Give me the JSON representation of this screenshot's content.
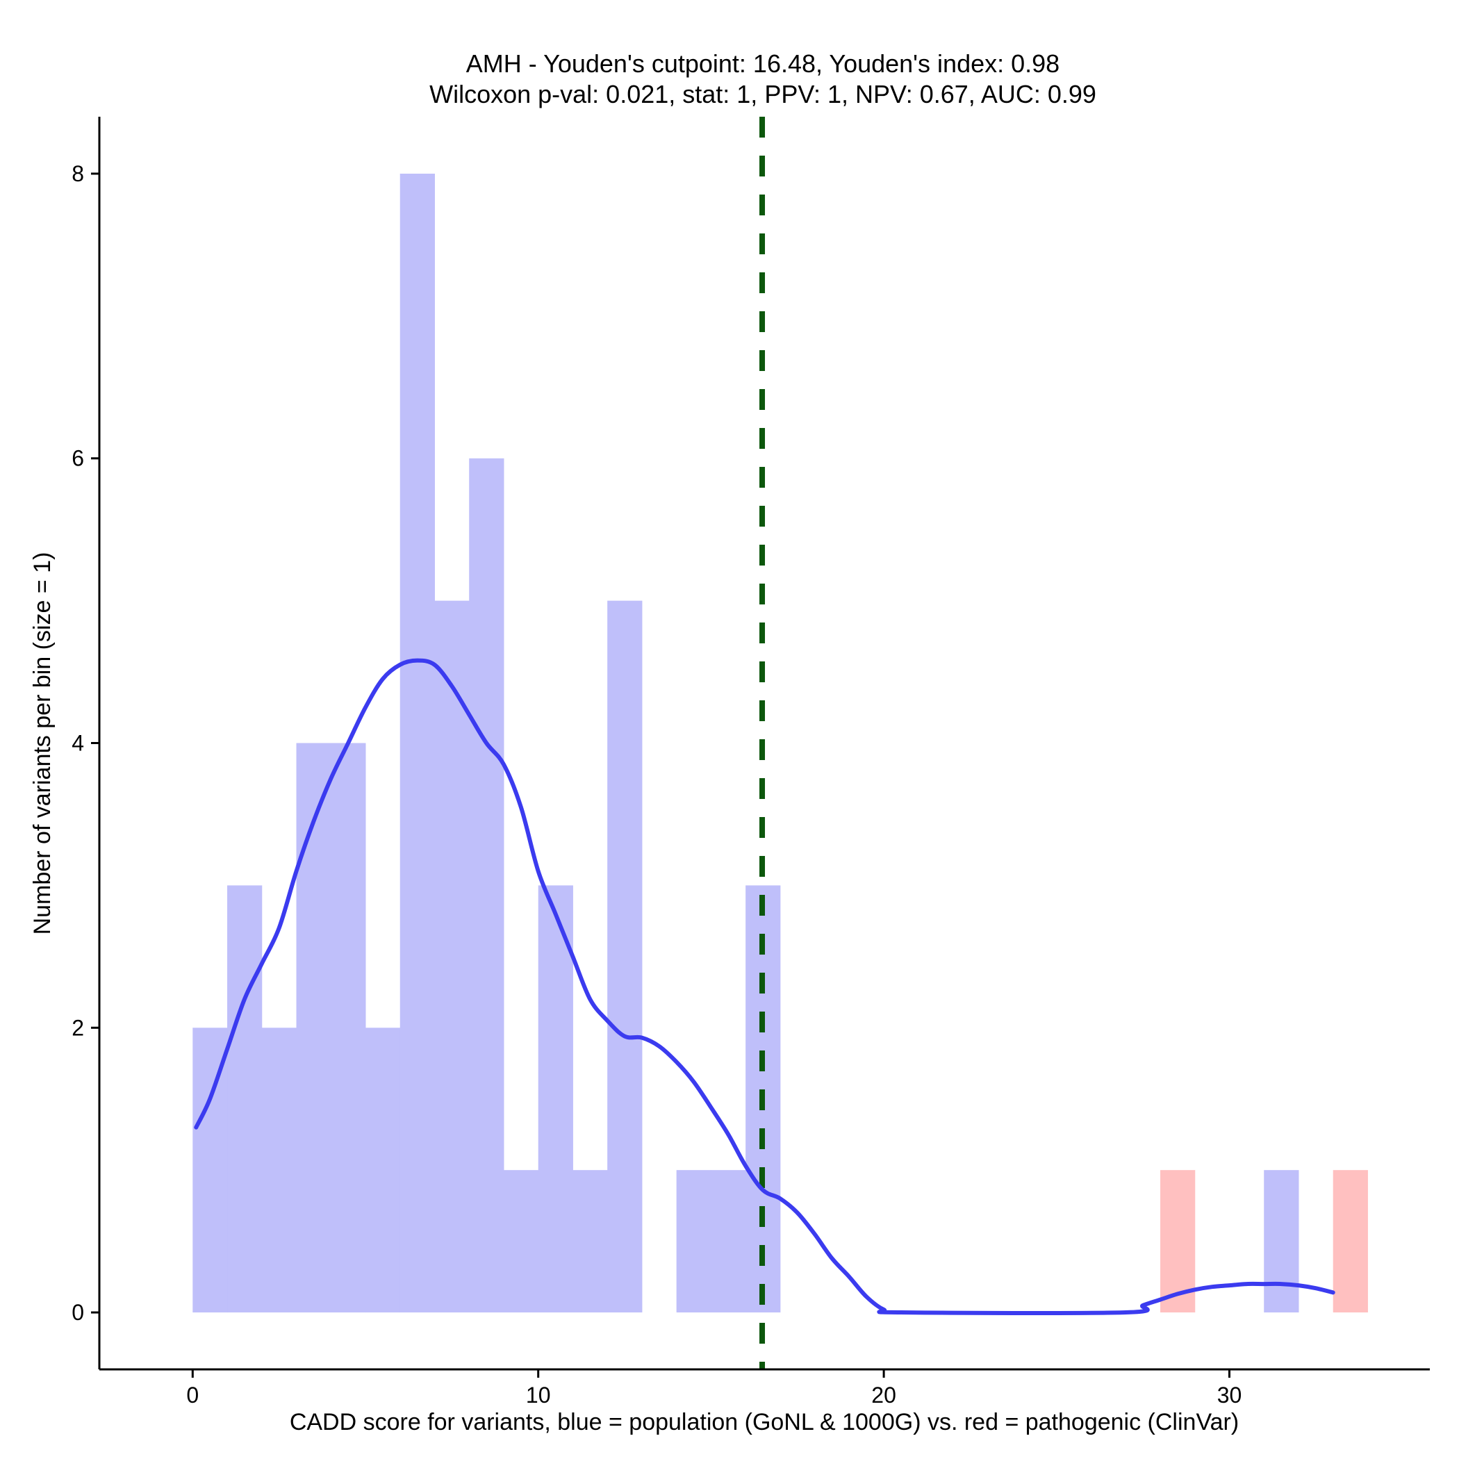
{
  "chart_data": {
    "type": "bar",
    "title": "AMH - Youden's cutpoint: 16.48, Youden's index: 0.98",
    "subtitle": "Wilcoxon p-val: 0.021, stat: 1, PPV: 1, NPV: 0.67, AUC: 0.99",
    "xlabel": "CADD score for variants, blue = population (GoNL & 1000G) vs. red = pathogenic (ClinVar)",
    "ylabel": "Number of variants per bin (size = 1)",
    "xlim": [
      -2.7,
      35.8
    ],
    "ylim": [
      -0.4,
      8.4
    ],
    "xticks": [
      0,
      10,
      20,
      30
    ],
    "yticks": [
      0,
      2,
      4,
      6,
      8
    ],
    "grid": false,
    "legend": "none",
    "bin_width": 1,
    "cutpoint": 16.48,
    "series": [
      {
        "name": "population",
        "color": "#bfbffa",
        "bins": [
          {
            "x0": 0,
            "count": 2
          },
          {
            "x0": 1,
            "count": 3
          },
          {
            "x0": 2,
            "count": 2
          },
          {
            "x0": 3,
            "count": 4
          },
          {
            "x0": 4,
            "count": 4
          },
          {
            "x0": 5,
            "count": 2
          },
          {
            "x0": 6,
            "count": 8
          },
          {
            "x0": 7,
            "count": 5
          },
          {
            "x0": 8,
            "count": 6
          },
          {
            "x0": 9,
            "count": 1
          },
          {
            "x0": 10,
            "count": 3
          },
          {
            "x0": 11,
            "count": 1
          },
          {
            "x0": 12,
            "count": 5
          },
          {
            "x0": 14,
            "count": 1
          },
          {
            "x0": 15,
            "count": 1
          },
          {
            "x0": 16,
            "count": 3
          },
          {
            "x0": 31,
            "count": 1
          }
        ]
      },
      {
        "name": "pathogenic",
        "color": "#ffc0c0",
        "bins": [
          {
            "x0": 28,
            "count": 1
          },
          {
            "x0": 33,
            "count": 1
          }
        ]
      }
    ],
    "density_curve": {
      "color": "#3b3bef",
      "points": [
        [
          0.1,
          1.3
        ],
        [
          0.5,
          1.5
        ],
        [
          1.0,
          1.85
        ],
        [
          1.5,
          2.2
        ],
        [
          2.0,
          2.45
        ],
        [
          2.5,
          2.7
        ],
        [
          3.0,
          3.1
        ],
        [
          3.5,
          3.45
        ],
        [
          4.0,
          3.75
        ],
        [
          4.5,
          4.0
        ],
        [
          5.0,
          4.25
        ],
        [
          5.5,
          4.45
        ],
        [
          6.0,
          4.55
        ],
        [
          6.5,
          4.58
        ],
        [
          7.0,
          4.55
        ],
        [
          7.5,
          4.4
        ],
        [
          8.0,
          4.2
        ],
        [
          8.5,
          4.0
        ],
        [
          9.0,
          3.85
        ],
        [
          9.5,
          3.55
        ],
        [
          10.0,
          3.1
        ],
        [
          10.5,
          2.8
        ],
        [
          11.0,
          2.5
        ],
        [
          11.5,
          2.2
        ],
        [
          12.0,
          2.05
        ],
        [
          12.5,
          1.94
        ],
        [
          13.0,
          1.93
        ],
        [
          13.5,
          1.87
        ],
        [
          14.0,
          1.76
        ],
        [
          14.5,
          1.62
        ],
        [
          15.0,
          1.44
        ],
        [
          15.5,
          1.25
        ],
        [
          16.0,
          1.03
        ],
        [
          16.5,
          0.86
        ],
        [
          17.0,
          0.8
        ],
        [
          17.5,
          0.7
        ],
        [
          18.0,
          0.55
        ],
        [
          18.5,
          0.38
        ],
        [
          19.0,
          0.25
        ],
        [
          19.5,
          0.11
        ],
        [
          20.0,
          0.02
        ],
        [
          20.5,
          0.0
        ],
        [
          27.0,
          0.0
        ],
        [
          27.5,
          0.05
        ],
        [
          28.0,
          0.09
        ],
        [
          28.5,
          0.13
        ],
        [
          29.0,
          0.16
        ],
        [
          29.5,
          0.18
        ],
        [
          30.0,
          0.19
        ],
        [
          30.5,
          0.2
        ],
        [
          31.0,
          0.2
        ],
        [
          31.5,
          0.2
        ],
        [
          32.0,
          0.19
        ],
        [
          32.5,
          0.17
        ],
        [
          33.0,
          0.14
        ]
      ]
    },
    "vline_color": "#0c570c"
  }
}
